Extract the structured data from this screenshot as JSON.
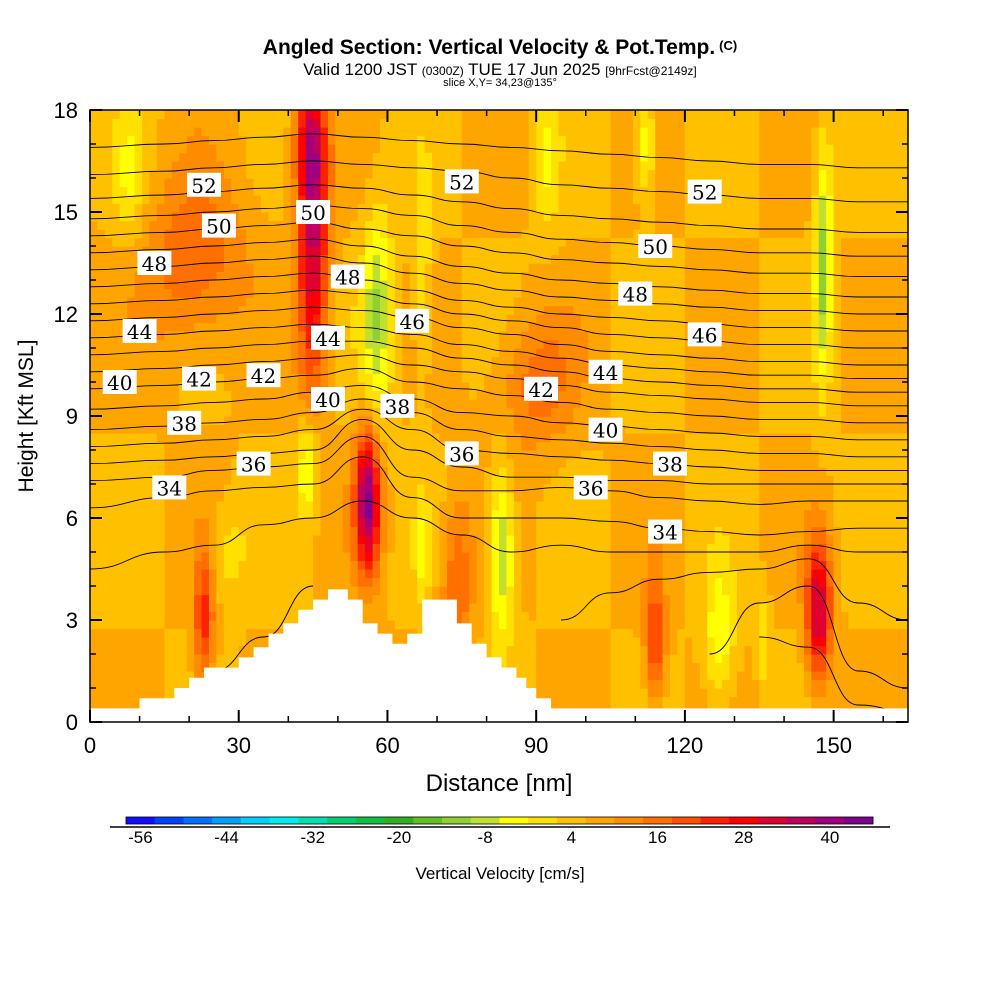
{
  "header": {
    "title": "Angled Section: Vertical Velocity & Pot.Temp.",
    "title_tag": "(C)",
    "valid_prefix": "Valid 1200 JST",
    "valid_utc": "(0300Z)",
    "valid_date": "TUE 17 Jun 2025",
    "forecast": "[9hrFcst@2149z]",
    "slice": "slice X,Y= 34,23@135°"
  },
  "chart_data": {
    "type": "heatmap",
    "xlabel": "Distance [nm]",
    "ylabel": "Height [Kft MSL]",
    "xlim": [
      0,
      165
    ],
    "ylim": [
      0,
      18
    ],
    "x_ticks": [
      0,
      30,
      60,
      90,
      120,
      150
    ],
    "y_ticks": [
      0,
      3,
      6,
      9,
      12,
      15,
      18
    ],
    "colorbar": {
      "label": "Vertical Velocity [cm/s]",
      "min": -58,
      "max": 46,
      "step": 4,
      "tick_values": [
        -56,
        -44,
        -32,
        -20,
        -8,
        4,
        16,
        28,
        40
      ],
      "colors": [
        "#1010ff",
        "#0044ff",
        "#0070ff",
        "#00a0ff",
        "#00d0ff",
        "#00eeee",
        "#00e0b0",
        "#00d070",
        "#10c040",
        "#30b020",
        "#60c020",
        "#90d030",
        "#c0e030",
        "#ffff00",
        "#ffe000",
        "#ffc000",
        "#ffa500",
        "#ff8c00",
        "#ff7000",
        "#ff5000",
        "#ff2000",
        "#ff0000",
        "#e00030",
        "#c00060",
        "#a00080",
        "#800090"
      ]
    },
    "terrain": [
      [
        0,
        0.4
      ],
      [
        10,
        0.4
      ],
      [
        10,
        0.7
      ],
      [
        17,
        0.7
      ],
      [
        17,
        1.0
      ],
      [
        20,
        1.0
      ],
      [
        20,
        1.3
      ],
      [
        23,
        1.3
      ],
      [
        23,
        1.6
      ],
      [
        30,
        1.6
      ],
      [
        30,
        1.9
      ],
      [
        33,
        1.9
      ],
      [
        33,
        2.2
      ],
      [
        36,
        2.2
      ],
      [
        36,
        2.6
      ],
      [
        39,
        2.6
      ],
      [
        39,
        2.9
      ],
      [
        42,
        2.9
      ],
      [
        42,
        3.3
      ],
      [
        45,
        3.3
      ],
      [
        45,
        3.6
      ],
      [
        48,
        3.6
      ],
      [
        48,
        3.9
      ],
      [
        52,
        3.9
      ],
      [
        52,
        3.6
      ],
      [
        55,
        3.6
      ],
      [
        55,
        2.9
      ],
      [
        58,
        2.9
      ],
      [
        58,
        2.6
      ],
      [
        61,
        2.6
      ],
      [
        61,
        2.3
      ],
      [
        64,
        2.3
      ],
      [
        64,
        2.6
      ],
      [
        67,
        2.6
      ],
      [
        67,
        3.6
      ],
      [
        74,
        3.6
      ],
      [
        74,
        2.9
      ],
      [
        77,
        2.9
      ],
      [
        77,
        2.3
      ],
      [
        80,
        2.3
      ],
      [
        80,
        1.9
      ],
      [
        83,
        1.9
      ],
      [
        83,
        1.6
      ],
      [
        86,
        1.6
      ],
      [
        86,
        1.3
      ],
      [
        88,
        1.3
      ],
      [
        88,
        1.0
      ],
      [
        90,
        1.0
      ],
      [
        90,
        0.7
      ],
      [
        93,
        0.7
      ],
      [
        93,
        0.4
      ],
      [
        165,
        0.4
      ]
    ],
    "velocity_features": [
      {
        "x": 45,
        "y": 14.5,
        "value": 30,
        "sx": 3,
        "sy": 4.5
      },
      {
        "x": 44,
        "y": 17,
        "value": 14,
        "sx": 3,
        "sy": 1.5
      },
      {
        "x": 56,
        "y": 6.5,
        "value": 36,
        "sx": 2.5,
        "sy": 2
      },
      {
        "x": 147,
        "y": 3.3,
        "value": 30,
        "sx": 2.5,
        "sy": 2
      },
      {
        "x": 23,
        "y": 3,
        "value": 18,
        "sx": 2,
        "sy": 2
      },
      {
        "x": 114,
        "y": 2.5,
        "value": 18,
        "sx": 2,
        "sy": 1.8
      },
      {
        "x": 21,
        "y": 13.5,
        "value": 12,
        "sx": 10,
        "sy": 2.5
      },
      {
        "x": 90,
        "y": 10,
        "value": 10,
        "sx": 8,
        "sy": 2
      },
      {
        "x": 74,
        "y": 4,
        "value": 12,
        "sx": 3,
        "sy": 2.5
      },
      {
        "x": 148,
        "y": 13.5,
        "value": -18,
        "sx": 1.8,
        "sy": 3.5
      },
      {
        "x": 58,
        "y": 12,
        "value": -16,
        "sx": 3,
        "sy": 3
      },
      {
        "x": 83,
        "y": 5,
        "value": -18,
        "sx": 2.5,
        "sy": 2.5
      },
      {
        "x": 44,
        "y": 7.5,
        "value": -14,
        "sx": 2,
        "sy": 1.5
      },
      {
        "x": 127,
        "y": 2.5,
        "value": -12,
        "sx": 3,
        "sy": 2
      },
      {
        "x": 112,
        "y": 17,
        "value": -12,
        "sx": 2,
        "sy": 1.5
      },
      {
        "x": 67,
        "y": 13,
        "value": -8,
        "sx": 2,
        "sy": 3
      },
      {
        "x": 8,
        "y": 16,
        "value": -8,
        "sx": 3,
        "sy": 2
      },
      {
        "x": 92,
        "y": 16.5,
        "value": -8,
        "sx": 2.5,
        "sy": 2
      },
      {
        "x": 28,
        "y": 5,
        "value": -6,
        "sx": 4,
        "sy": 1.5
      },
      {
        "x": 136,
        "y": 2.5,
        "value": -8,
        "sx": 1,
        "sy": 1.5
      },
      {
        "x": 67,
        "y": 5,
        "value": -8,
        "sx": 1.5,
        "sy": 1.5
      }
    ],
    "isentrope_levels": [
      30,
      31,
      32,
      33,
      34,
      35,
      36,
      37,
      38,
      39,
      40,
      41,
      42,
      43,
      44,
      45,
      46,
      47,
      48,
      49,
      50,
      51,
      52,
      53
    ],
    "isentrope_heights": {
      "x": [
        0,
        15,
        25,
        35,
        45,
        55,
        65,
        75,
        85,
        95,
        105,
        115,
        125,
        135,
        145,
        155,
        165
      ],
      "levels": {
        "30": [
          null,
          null,
          null,
          null,
          null,
          null,
          null,
          null,
          null,
          null,
          null,
          null,
          null,
          2.5,
          2.2,
          0.5,
          0.3
        ],
        "31": [
          null,
          null,
          null,
          null,
          null,
          null,
          null,
          null,
          null,
          null,
          null,
          null,
          2.0,
          3.5,
          4.0,
          1.5,
          1.0
        ],
        "32": [
          null,
          null,
          1.5,
          2.5,
          4.0,
          null,
          null,
          null,
          null,
          3.0,
          3.8,
          4.2,
          4.4,
          4.5,
          4.8,
          3.5,
          3.0
        ],
        "33": [
          4.5,
          5.0,
          5.2,
          5.8,
          6.0,
          6.5,
          6.0,
          5.5,
          5.0,
          5.2,
          5.0,
          5.0,
          5.0,
          5.0,
          5.2,
          5.0,
          5.0
        ],
        "34": [
          6.3,
          6.6,
          6.8,
          6.9,
          7.0,
          7.8,
          6.6,
          6.0,
          6.0,
          6.0,
          5.9,
          5.7,
          5.6,
          5.5,
          5.6,
          5.7,
          5.7
        ],
        "35": [
          7.1,
          7.2,
          7.4,
          7.5,
          7.6,
          8.4,
          7.2,
          6.8,
          6.8,
          6.9,
          6.8,
          6.6,
          6.5,
          6.4,
          6.5,
          6.5,
          6.5
        ],
        "36": [
          7.6,
          7.7,
          7.8,
          7.9,
          8.0,
          8.9,
          8.0,
          7.5,
          7.2,
          7.2,
          7.1,
          7.1,
          7.0,
          7.0,
          7.0,
          7.0,
          7.0
        ],
        "37": [
          8.1,
          8.2,
          8.3,
          8.4,
          8.6,
          9.2,
          8.6,
          8.0,
          7.9,
          7.8,
          7.7,
          7.6,
          7.5,
          7.4,
          7.4,
          7.4,
          7.4
        ],
        "38": [
          8.6,
          8.7,
          8.8,
          8.9,
          9.1,
          9.5,
          9.1,
          8.6,
          8.4,
          8.3,
          8.2,
          8.1,
          8.0,
          7.9,
          7.9,
          7.8,
          7.8
        ],
        "39": [
          9.2,
          9.3,
          9.4,
          9.5,
          9.7,
          9.9,
          9.5,
          9.1,
          9.0,
          8.8,
          8.7,
          8.6,
          8.5,
          8.4,
          8.4,
          8.3,
          8.3
        ],
        "40": [
          9.8,
          9.9,
          10.0,
          10.1,
          10.2,
          10.4,
          10.0,
          9.8,
          9.6,
          9.4,
          9.2,
          9.1,
          9.0,
          8.9,
          8.9,
          8.8,
          8.8
        ],
        "41": [
          10.3,
          10.4,
          10.5,
          10.6,
          10.7,
          10.8,
          10.5,
          10.3,
          10.1,
          9.9,
          9.7,
          9.6,
          9.5,
          9.4,
          9.4,
          9.3,
          9.3
        ],
        "42": [
          10.8,
          10.9,
          11.0,
          11.1,
          11.2,
          11.2,
          11.0,
          10.7,
          10.5,
          10.3,
          10.1,
          10.0,
          9.9,
          9.8,
          9.8,
          9.7,
          9.7
        ],
        "43": [
          11.3,
          11.4,
          11.5,
          11.6,
          11.7,
          11.6,
          11.4,
          11.1,
          10.9,
          10.7,
          10.5,
          10.4,
          10.3,
          10.2,
          10.2,
          10.1,
          10.1
        ],
        "44": [
          11.8,
          11.9,
          12.0,
          12.1,
          12.2,
          12.1,
          11.9,
          11.6,
          11.4,
          11.1,
          10.9,
          10.8,
          10.7,
          10.6,
          10.6,
          10.5,
          10.5
        ],
        "45": [
          12.3,
          12.4,
          12.5,
          12.6,
          12.7,
          12.6,
          12.3,
          12.0,
          11.8,
          11.6,
          11.4,
          11.3,
          11.2,
          11.1,
          11.1,
          11.0,
          11.0
        ],
        "46": [
          12.8,
          12.9,
          13.0,
          13.1,
          13.2,
          13.0,
          12.7,
          12.4,
          12.2,
          12.0,
          11.9,
          11.8,
          11.7,
          11.6,
          11.6,
          11.5,
          11.5
        ],
        "47": [
          13.3,
          13.4,
          13.5,
          13.6,
          13.7,
          13.5,
          13.2,
          12.9,
          12.7,
          12.5,
          12.4,
          12.3,
          12.2,
          12.1,
          12.1,
          12.0,
          12.0
        ],
        "48": [
          13.8,
          13.9,
          14.0,
          14.1,
          14.2,
          14.0,
          13.7,
          13.4,
          13.2,
          13.0,
          12.9,
          12.8,
          12.7,
          12.6,
          12.6,
          12.5,
          12.5
        ],
        "49": [
          14.3,
          14.4,
          14.5,
          14.6,
          14.7,
          14.5,
          14.3,
          14.0,
          13.8,
          13.6,
          13.5,
          13.4,
          13.3,
          13.2,
          13.2,
          13.1,
          13.1
        ],
        "50": [
          14.8,
          14.9,
          15.0,
          15.1,
          15.2,
          15.1,
          14.9,
          14.6,
          14.4,
          14.2,
          14.1,
          14.0,
          13.9,
          13.8,
          13.8,
          13.7,
          13.7
        ],
        "51": [
          15.4,
          15.5,
          15.6,
          15.7,
          15.8,
          15.7,
          15.5,
          15.3,
          15.1,
          14.9,
          14.8,
          14.7,
          14.6,
          14.5,
          14.5,
          14.4,
          14.4
        ],
        "52": [
          16.1,
          16.2,
          16.3,
          16.4,
          16.5,
          16.4,
          16.3,
          16.2,
          16.0,
          15.8,
          15.7,
          15.6,
          15.5,
          15.4,
          15.4,
          15.3,
          15.3
        ],
        "53": [
          16.9,
          17.0,
          17.1,
          17.2,
          17.3,
          17.2,
          17.1,
          17.0,
          16.9,
          16.8,
          16.7,
          16.6,
          16.5,
          16.4,
          16.4,
          16.3,
          16.3
        ]
      }
    },
    "contour_labels": [
      {
        "text": "52",
        "x": 23,
        "y": 15.8
      },
      {
        "text": "50",
        "x": 26,
        "y": 14.6
      },
      {
        "text": "48",
        "x": 13,
        "y": 13.5
      },
      {
        "text": "44",
        "x": 10,
        "y": 11.5
      },
      {
        "text": "40",
        "x": 6,
        "y": 10
      },
      {
        "text": "42",
        "x": 22,
        "y": 10.1
      },
      {
        "text": "42",
        "x": 35,
        "y": 10.2
      },
      {
        "text": "38",
        "x": 19,
        "y": 8.8
      },
      {
        "text": "36",
        "x": 33,
        "y": 7.6
      },
      {
        "text": "34",
        "x": 16,
        "y": 6.9
      },
      {
        "text": "50",
        "x": 45,
        "y": 15
      },
      {
        "text": "48",
        "x": 52,
        "y": 13.1
      },
      {
        "text": "44",
        "x": 48,
        "y": 11.3
      },
      {
        "text": "40",
        "x": 48,
        "y": 9.5
      },
      {
        "text": "38",
        "x": 62,
        "y": 9.3
      },
      {
        "text": "46",
        "x": 65,
        "y": 11.8
      },
      {
        "text": "36",
        "x": 75,
        "y": 7.9
      },
      {
        "text": "52",
        "x": 75,
        "y": 15.9
      },
      {
        "text": "42",
        "x": 91,
        "y": 9.8
      },
      {
        "text": "44",
        "x": 104,
        "y": 10.3
      },
      {
        "text": "40",
        "x": 104,
        "y": 8.6
      },
      {
        "text": "36",
        "x": 101,
        "y": 6.9
      },
      {
        "text": "48",
        "x": 110,
        "y": 12.6
      },
      {
        "text": "50",
        "x": 114,
        "y": 14
      },
      {
        "text": "46",
        "x": 124,
        "y": 11.4
      },
      {
        "text": "38",
        "x": 117,
        "y": 7.6
      },
      {
        "text": "34",
        "x": 116,
        "y": 5.6
      },
      {
        "text": "52",
        "x": 124,
        "y": 15.6
      }
    ]
  }
}
